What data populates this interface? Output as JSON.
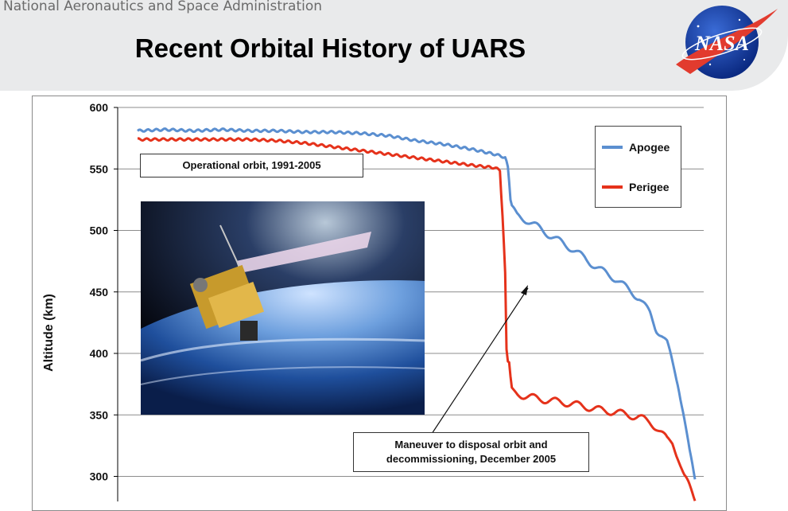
{
  "header": {
    "agency": "National Aeronautics and Space Administration",
    "title": "Recent Orbital History of UARS",
    "logo_text": "NASA"
  },
  "chart_data": {
    "type": "line",
    "title": "Recent Orbital History of UARS",
    "ylabel": "Altitude  (km)",
    "xlabel": "",
    "ylim": [
      280,
      600
    ],
    "xlim": [
      0,
      1
    ],
    "yticks": [
      300,
      350,
      400,
      450,
      500,
      550,
      600
    ],
    "grid": true,
    "legend_position": "top-right",
    "series": [
      {
        "name": "Apogee",
        "color": "#5b8fd0",
        "x": [
          0,
          0.05,
          0.1,
          0.15,
          0.2,
          0.25,
          0.3,
          0.35,
          0.4,
          0.45,
          0.5,
          0.55,
          0.6,
          0.64,
          0.655,
          0.66,
          0.665,
          0.67,
          0.68,
          0.7,
          0.72,
          0.75,
          0.78,
          0.8,
          0.83,
          0.86,
          0.88,
          0.9,
          0.92,
          0.93,
          0.94,
          0.95,
          0.96,
          0.97,
          0.98,
          0.99,
          1.0
        ],
        "y": [
          581,
          582,
          581,
          582,
          581,
          581,
          580,
          580,
          579,
          577,
          573,
          570,
          566,
          562,
          560,
          559,
          550,
          520,
          512,
          508,
          502,
          493,
          485,
          478,
          468,
          460,
          452,
          445,
          432,
          420,
          415,
          408,
          392,
          375,
          350,
          320,
          297
        ]
      },
      {
        "name": "Perigee",
        "color": "#e5321b",
        "x": [
          0,
          0.05,
          0.1,
          0.15,
          0.2,
          0.25,
          0.3,
          0.35,
          0.4,
          0.45,
          0.5,
          0.55,
          0.6,
          0.64,
          0.65,
          0.655,
          0.66,
          0.662,
          0.665,
          0.668,
          0.67,
          0.675,
          0.68,
          0.7,
          0.72,
          0.75,
          0.78,
          0.8,
          0.83,
          0.86,
          0.88,
          0.9,
          0.92,
          0.93,
          0.94,
          0.95,
          0.96,
          0.97,
          0.98,
          0.99,
          1.0
        ],
        "y": [
          574,
          574,
          574,
          574,
          574,
          573,
          571,
          568,
          565,
          562,
          559,
          556,
          553,
          551,
          549,
          510,
          460,
          400,
          392,
          395,
          370,
          368,
          367,
          365,
          363,
          361,
          359,
          357,
          354,
          352,
          350,
          348,
          344,
          340,
          335,
          330,
          328,
          315,
          300,
          292,
          282
        ]
      }
    ],
    "annotations": [
      {
        "text": "Operational orbit, 1991-2005"
      },
      {
        "text_line1": "Maneuver to disposal orbit and",
        "text_line2": "decommissioning, December 2005"
      }
    ]
  },
  "image": {
    "alt": "UARS satellite in orbit above Earth"
  }
}
